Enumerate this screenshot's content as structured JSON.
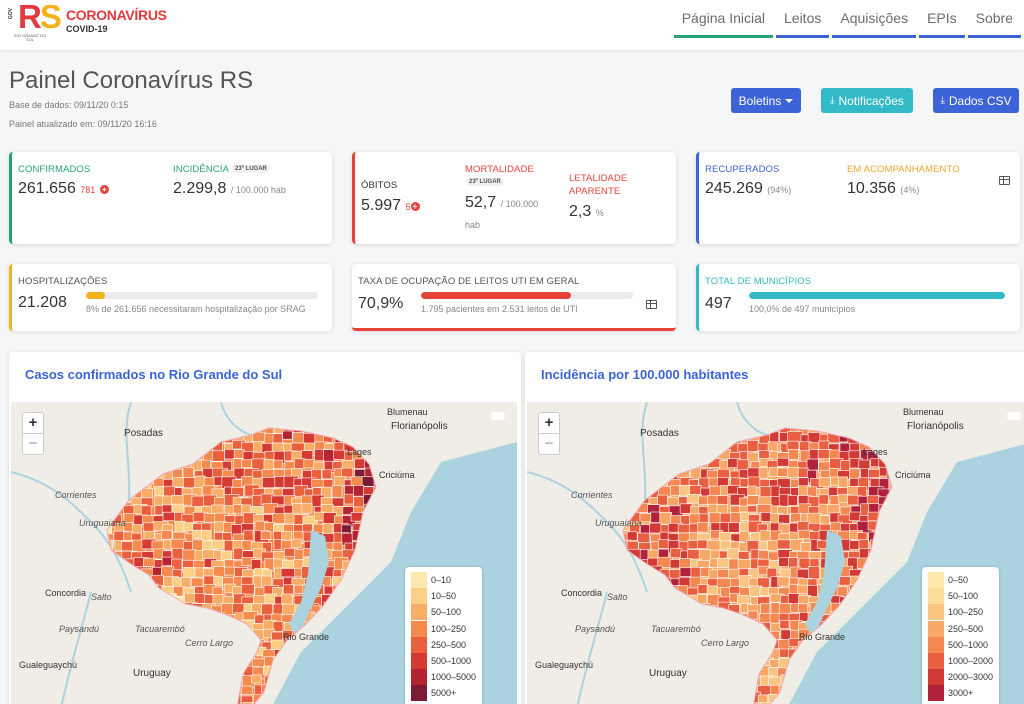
{
  "header": {
    "logo_text": "RS",
    "logo_gov": "GOV",
    "logo_sub": "RIO GRANDE DO SUL",
    "brand_title": "CORONAVÍRUS",
    "brand_sub": "COVID-19",
    "nav": [
      "Página Inicial",
      "Leitos",
      "Aquisições",
      "EPIs",
      "Sobre"
    ]
  },
  "page": {
    "title": "Painel Coronavírus RS",
    "base": "Base de dados: 09/11/20 0:15",
    "updated": "Painel atualizado em: 09/11/20 16:16"
  },
  "buttons": {
    "boletins": "Boletins",
    "notificacoes": "Notificações",
    "dados_csv": "Dados CSV"
  },
  "cards": {
    "confirmados": {
      "label": "CONFIRMADOS",
      "value": "261.656",
      "delta": "781"
    },
    "incidencia": {
      "label": "INCIDÊNCIA",
      "badge": "23º LUGAR",
      "value": "2.299,8",
      "unit": "/ 100.000 hab"
    },
    "obitos": {
      "label": "ÓBITOS",
      "value": "5.997",
      "delta": "5"
    },
    "mortalidade": {
      "label": "MORTALIDADE",
      "badge": "23º LUGAR",
      "value": "52,7",
      "unit": "/ 100.000",
      "unit2": "hab"
    },
    "letalidade": {
      "label1": "LETALIDADE",
      "label2": "APARENTE",
      "value": "2,3",
      "unit": "%"
    },
    "recuperados": {
      "label": "RECUPERADOS",
      "value": "245.269",
      "pct": "(94%)"
    },
    "acompanhamento": {
      "label": "EM ACOMPANHAMENTO",
      "value": "10.356",
      "pct": "(4%)"
    },
    "hospitalizacoes": {
      "label": "HOSPITALIZAÇÕES",
      "value": "21.208",
      "note": "8% de 261.656 necessitaram hospitalização por SRAG",
      "fraction": 0.08
    },
    "uti": {
      "label": "TAXA DE OCUPAÇÃO DE LEITOS UTI EM GERAL",
      "value": "70,9%",
      "note": "1.795 pacientes em 2.531 leitos de UTI",
      "fraction": 0.709
    },
    "municipios": {
      "label": "TOTAL DE MUNICÍPIOS",
      "value": "497",
      "note": "100,0% de 497 municípios",
      "fraction": 1.0
    }
  },
  "maps": [
    {
      "title": "Casos confirmados no Rio Grande do Sul",
      "legend": [
        "0–10",
        "10–50",
        "50–100",
        "100–250",
        "250–500",
        "500–1000",
        "1000–5000",
        "5000+"
      ],
      "colors": [
        "#fde9ae",
        "#fbcf86",
        "#f8ad67",
        "#f58a4f",
        "#e9603e",
        "#d43a33",
        "#b52232",
        "#7a1c34"
      ]
    },
    {
      "title": "Incidência por 100.000 habitantes",
      "legend": [
        "0–50",
        "50–100",
        "100–250",
        "250–500",
        "500–1000",
        "1000–2000",
        "2000–3000",
        "3000+"
      ],
      "colors": [
        "#fde9ae",
        "#fbdc98",
        "#f9c582",
        "#f7a866",
        "#f38853",
        "#e85f42",
        "#d23a36",
        "#b0213c"
      ]
    }
  ],
  "places": {
    "blumenau": "Blumenau",
    "florianopolis": "Florianópolis",
    "posadas": "Posadas",
    "lages": "Lages",
    "criciuma": "Criciúma",
    "corrientes": "Corrientes",
    "uruguaiana": "Uruguaiana",
    "concordia": "Concordia",
    "salto": "Salto",
    "paysandu": "Paysandú",
    "tacuarembo": "Tacuarembó",
    "cerro_largo": "Cerro Largo",
    "gualeguaychu": "Gualeguaychú",
    "uruguay": "Uruguay",
    "rio_grande": "Rio Grande"
  },
  "zoom": {
    "plus": "+",
    "minus": "−"
  }
}
